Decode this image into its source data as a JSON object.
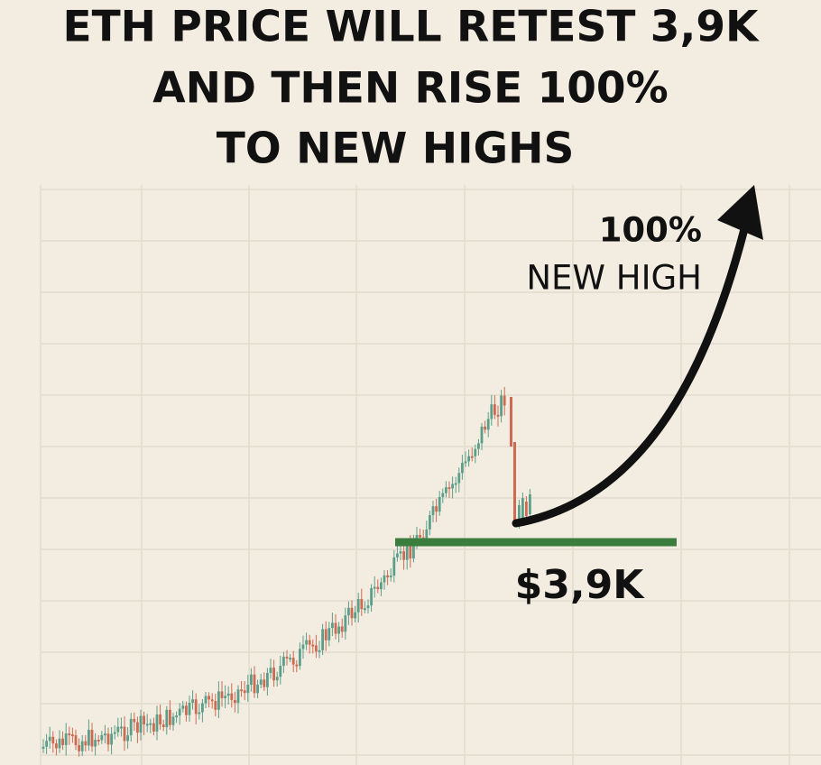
{
  "header": {
    "title_lines": [
      "ETH PRICE WILL RETEST 3,9K",
      "AND THEN RISE 100%",
      "TO NEW HIGHS"
    ]
  },
  "annotations": {
    "gain": "100%",
    "target": "NEW HIGH",
    "support": "$3,9K"
  }
}
